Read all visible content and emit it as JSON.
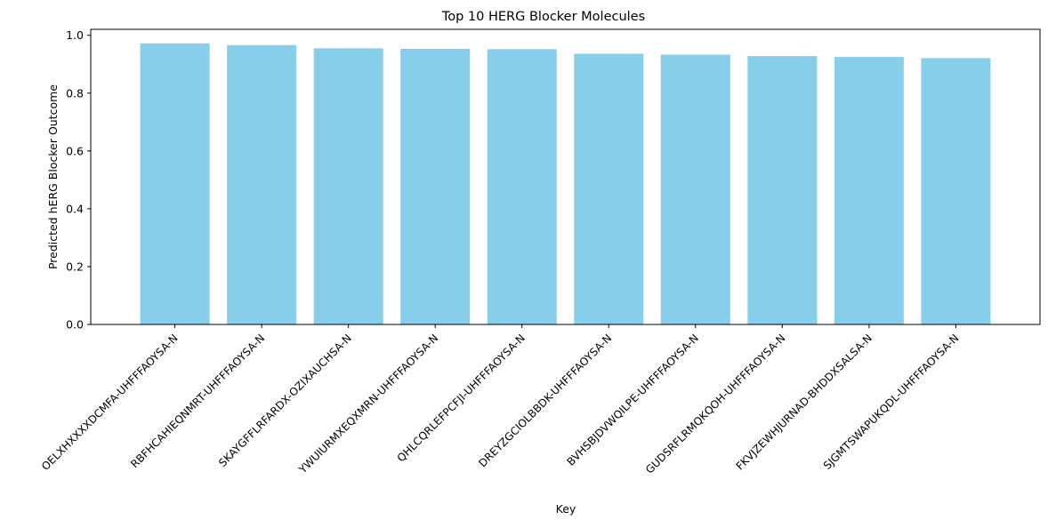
{
  "chart_data": {
    "type": "bar",
    "title": "Top 10 HERG Blocker Molecules",
    "xlabel": "Key",
    "ylabel": "Predicted hERG Blocker Outcome",
    "categories": [
      "OELXHXXXXDCMFA-UHFFFAOYSA-N",
      "RBFHCAHIEQNMRT-UHFFFAOYSA-N",
      "SKAYGFFLRFARDX-OZIXAUCHSA-N",
      "YWUIURMXEQXMRN-UHFFFAOYSA-N",
      "QHLCQRLEFPCFJI-UHFFFAOYSA-N",
      "DREYZGCIOLBBDK-UHFFFAOYSA-N",
      "BVHSBJDVWQILPE-UHFFFAOYSA-N",
      "GUDSRFLRMQKQOH-UHFFFAOYSA-N",
      "FKVJZEWHJURNAD-BHDDXSALSA-N",
      "SJGMTSWAPUKQDL-UHFFFAOYSA-N"
    ],
    "values": [
      0.972,
      0.966,
      0.955,
      0.953,
      0.952,
      0.936,
      0.933,
      0.928,
      0.925,
      0.921
    ],
    "ylim": [
      0,
      1.0206
    ],
    "yticks": [
      0.0,
      0.2,
      0.4,
      0.6,
      0.8,
      1.0
    ],
    "ytick_labels": [
      "0.0",
      "0.2",
      "0.4",
      "0.6",
      "0.8",
      "1.0"
    ],
    "bar_color": "#87ceeb",
    "grid": false,
    "legend": "none"
  }
}
